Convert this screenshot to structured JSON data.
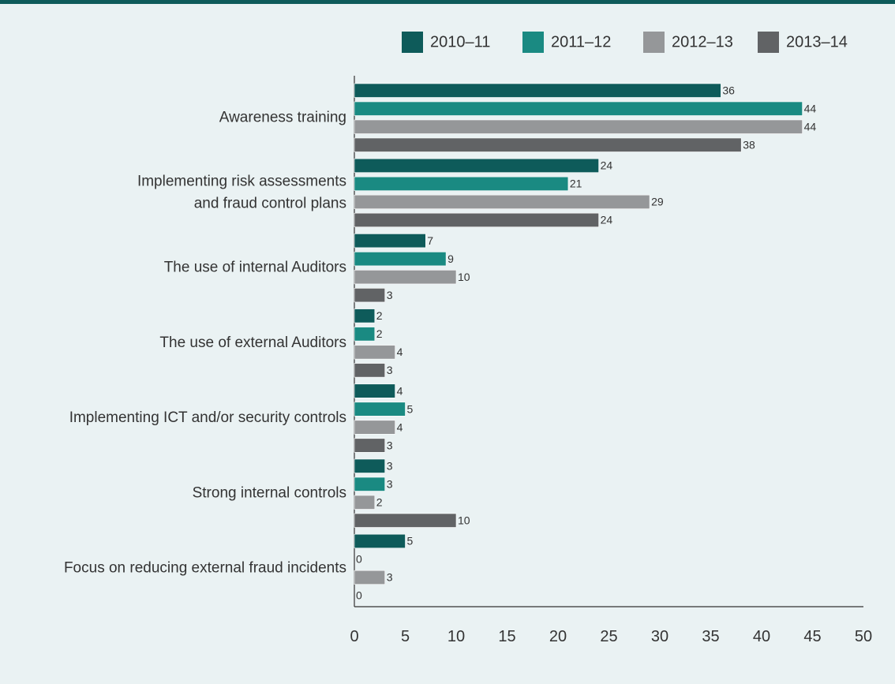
{
  "chart_data": {
    "type": "bar",
    "orientation": "horizontal",
    "categories": [
      [
        "Awareness training"
      ],
      [
        "Implementing risk assessments",
        "and fraud control plans"
      ],
      [
        "The use of internal Auditors"
      ],
      [
        "The use of external Auditors"
      ],
      [
        "Implementing ICT and/or security controls"
      ],
      [
        "Strong internal controls"
      ],
      [
        "Focus on reducing external fraud incidents"
      ]
    ],
    "series": [
      {
        "name": "2010–11",
        "color": "#0e5b5a",
        "values": [
          36,
          24,
          7,
          2,
          4,
          3,
          5
        ]
      },
      {
        "name": "2011–12",
        "color": "#1a8a82",
        "values": [
          44,
          21,
          9,
          2,
          5,
          3,
          0
        ]
      },
      {
        "name": "2012–13",
        "color": "#959799",
        "values": [
          44,
          29,
          10,
          4,
          4,
          2,
          3
        ]
      },
      {
        "name": "2013–14",
        "color": "#616365",
        "values": [
          38,
          24,
          3,
          3,
          3,
          10,
          0
        ]
      }
    ],
    "xlim": [
      0,
      50
    ],
    "xticks": [
      0,
      5,
      10,
      15,
      20,
      25,
      30,
      35,
      40,
      45,
      50
    ],
    "legend_position": "top-right",
    "grid": false
  }
}
